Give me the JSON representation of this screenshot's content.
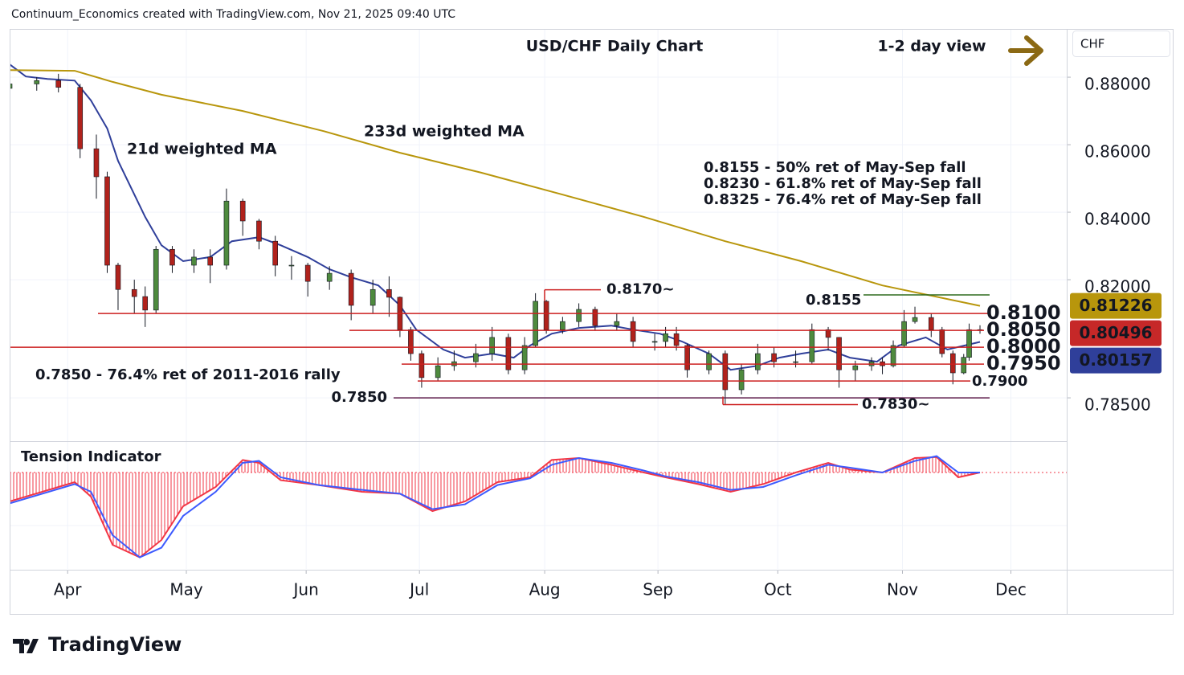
{
  "chart_data": {
    "type": "candlestick",
    "header": "Continuum_Economics created with TradingView.com, Nov 21, 2025 09:40 UTC",
    "title": "USD/CHF Daily Chart",
    "view": "1-2 day view",
    "currency": "CHF",
    "brand": "TradingView",
    "up_color": "#4e8a3e",
    "down_color": "#b0221c",
    "x": [
      0,
      5,
      9,
      13,
      16,
      18,
      20,
      23,
      25,
      27,
      30,
      34,
      37,
      40,
      43,
      46,
      49,
      52,
      55,
      59,
      63,
      67,
      70,
      72,
      74,
      76,
      79,
      82,
      86,
      89,
      92,
      95,
      97,
      99,
      102,
      105,
      108,
      112,
      115,
      119,
      121,
      123,
      125,
      129,
      132,
      135,
      138,
      141,
      145,
      148,
      151,
      153,
      156,
      159,
      161,
      163,
      165,
      167,
      170,
      172,
      174,
      176,
      177,
      179
    ],
    "open": [
      0.8767,
      0.878,
      0.879,
      0.877,
      0.8588,
      0.8505,
      0.8243,
      0.8171,
      0.815,
      0.811,
      0.829,
      0.8243,
      0.8267,
      0.8243,
      0.8433,
      0.8374,
      0.8314,
      0.8243,
      0.8243,
      0.8195,
      0.8219,
      0.8124,
      0.8171,
      0.8148,
      0.8052,
      0.7981,
      0.791,
      0.7945,
      0.7957,
      0.7981,
      0.8029,
      0.7933,
      0.8005,
      0.8136,
      0.8052,
      0.8076,
      0.8112,
      0.8064,
      0.8076,
      0.8017,
      0.8017,
      0.804,
      0.8005,
      0.7933,
      0.7981,
      0.7874,
      0.7933,
      0.7981,
      0.7957,
      0.7957,
      0.8052,
      0.8029,
      0.7933,
      0.7945,
      0.7957,
      0.7945,
      0.8005,
      0.8076,
      0.8088,
      0.8052,
      0.7981,
      0.7924,
      0.797,
      0.8052
    ],
    "high": [
      0.879,
      0.88,
      0.881,
      0.878,
      0.863,
      0.852,
      0.825,
      0.82,
      0.818,
      0.83,
      0.83,
      0.829,
      0.829,
      0.847,
      0.844,
      0.838,
      0.833,
      0.827,
      0.825,
      0.824,
      0.823,
      0.82,
      0.821,
      0.815,
      0.806,
      0.799,
      0.797,
      0.799,
      0.801,
      0.806,
      0.804,
      0.803,
      0.816,
      0.814,
      0.809,
      0.813,
      0.812,
      0.81,
      0.809,
      0.804,
      0.806,
      0.806,
      0.801,
      0.799,
      0.799,
      0.795,
      0.801,
      0.8,
      0.799,
      0.807,
      0.806,
      0.803,
      0.796,
      0.797,
      0.797,
      0.802,
      0.811,
      0.812,
      0.81,
      0.806,
      0.799,
      0.798,
      0.807,
      0.8065
    ],
    "low": [
      0.874,
      0.876,
      0.8755,
      0.856,
      0.844,
      0.822,
      0.811,
      0.81,
      0.806,
      0.81,
      0.822,
      0.822,
      0.819,
      0.823,
      0.833,
      0.829,
      0.821,
      0.82,
      0.815,
      0.817,
      0.808,
      0.81,
      0.809,
      0.803,
      0.796,
      0.788,
      0.79,
      0.793,
      0.794,
      0.796,
      0.792,
      0.792,
      0.8,
      0.804,
      0.804,
      0.806,
      0.805,
      0.805,
      0.8,
      0.799,
      0.8,
      0.799,
      0.791,
      0.792,
      0.783,
      0.786,
      0.792,
      0.794,
      0.794,
      0.795,
      0.799,
      0.788,
      0.79,
      0.793,
      0.792,
      0.794,
      0.8,
      0.807,
      0.803,
      0.797,
      0.789,
      0.792,
      0.796,
      0.804
    ],
    "close": [
      0.878,
      0.879,
      0.877,
      0.8588,
      0.8505,
      0.8243,
      0.8171,
      0.815,
      0.811,
      0.829,
      0.8243,
      0.8267,
      0.8243,
      0.8433,
      0.8374,
      0.8314,
      0.8243,
      0.8243,
      0.8195,
      0.8219,
      0.8124,
      0.8171,
      0.8148,
      0.8052,
      0.7981,
      0.791,
      0.7945,
      0.7957,
      0.7981,
      0.8029,
      0.7933,
      0.8005,
      0.8136,
      0.8052,
      0.8076,
      0.8112,
      0.8064,
      0.8076,
      0.8017,
      0.8017,
      0.804,
      0.8005,
      0.7933,
      0.7981,
      0.7874,
      0.7933,
      0.7981,
      0.7957,
      0.7957,
      0.8052,
      0.8029,
      0.7933,
      0.7945,
      0.7957,
      0.7945,
      0.8005,
      0.8076,
      0.8088,
      0.8052,
      0.7981,
      0.7924,
      0.797,
      0.8052,
      0.80496
    ],
    "xlim": [
      0,
      195
    ],
    "xticks": [
      {
        "value": 10.7,
        "label": "Apr"
      },
      {
        "value": 32.6,
        "label": "May"
      },
      {
        "value": 54.7,
        "label": "Jun"
      },
      {
        "value": 75.6,
        "label": "Jul"
      },
      {
        "value": 98.7,
        "label": "Aug"
      },
      {
        "value": 119.6,
        "label": "Sep"
      },
      {
        "value": 141.7,
        "label": "Oct"
      },
      {
        "value": 164.7,
        "label": "Nov"
      },
      {
        "value": 184.7,
        "label": "Dec"
      }
    ],
    "ylim": [
      0.7724,
      0.8943
    ],
    "yticks": [
      {
        "value": 0.785,
        "label": "0.78500"
      },
      {
        "value": 0.82,
        "label": "0.82000"
      },
      {
        "value": 0.84,
        "label": "0.84000"
      },
      {
        "value": 0.86,
        "label": "0.86000"
      },
      {
        "value": 0.88,
        "label": "0.88000"
      }
    ],
    "grid": true,
    "moving_averages": [
      {
        "name": "21d weighted MA",
        "color": "#2f3f9a",
        "x": [
          0,
          3,
          7,
          12,
          15,
          18,
          20,
          25,
          28,
          32,
          37,
          41,
          46,
          50,
          55,
          59,
          63,
          68,
          72,
          75,
          80,
          84,
          89,
          93,
          96,
          100,
          105,
          111,
          115,
          120,
          124,
          129,
          133,
          138,
          142,
          146,
          151,
          155,
          160,
          164,
          169,
          173,
          179
        ],
        "values": [
          0.8838,
          0.8802,
          0.8795,
          0.879,
          0.8731,
          0.8648,
          0.8552,
          0.8386,
          0.8302,
          0.8255,
          0.8267,
          0.8314,
          0.8326,
          0.8302,
          0.8267,
          0.8231,
          0.8207,
          0.8183,
          0.8124,
          0.8052,
          0.7993,
          0.7969,
          0.7981,
          0.7969,
          0.8005,
          0.804,
          0.8057,
          0.8064,
          0.8052,
          0.804,
          0.8017,
          0.7981,
          0.7933,
          0.7945,
          0.7969,
          0.7981,
          0.7993,
          0.7969,
          0.7957,
          0.8005,
          0.8029,
          0.7993,
          0.80157
        ]
      },
      {
        "name": "233d weighted MA",
        "color": "#b8960c",
        "x": [
          0,
          12,
          19,
          28,
          43,
          58,
          72,
          87,
          102,
          117,
          132,
          146,
          161,
          179
        ],
        "values": [
          0.8821,
          0.8819,
          0.8786,
          0.8748,
          0.87,
          0.864,
          0.8576,
          0.8517,
          0.8452,
          0.8386,
          0.8314,
          0.8255,
          0.8183,
          0.81226
        ]
      }
    ],
    "price_tags": [
      {
        "value": 0.81226,
        "label": "0.81226",
        "color": "#b8960c"
      },
      {
        "value": 0.80496,
        "label": "0.80496",
        "color": "#c62828"
      },
      {
        "value": 0.80157,
        "label": "0.80157",
        "color": "#2f3f9a"
      }
    ],
    "levels": [
      {
        "value": 0.81,
        "label": "0.8100",
        "color": "#cc1f1f"
      },
      {
        "value": 0.805,
        "label": "0.8050",
        "color": "#cc1f1f"
      },
      {
        "value": 0.8,
        "label": "0.8000",
        "color": "#cc1f1f"
      },
      {
        "value": 0.795,
        "label": "0.7950",
        "color": "#cc1f1f"
      },
      {
        "value": 0.79,
        "label": "0.7900",
        "color": "#cc1f1f"
      },
      {
        "value": 0.785,
        "label": "0.7850",
        "color": "#5c1a4a"
      },
      {
        "value": 0.8155,
        "label": "0.8155",
        "color": "#2e6b1f"
      },
      {
        "value": 0.817,
        "label": "0.8170~",
        "color": "#cc1f1f"
      },
      {
        "value": 0.783,
        "label": "0.7830~",
        "color": "#cc1f1f"
      }
    ],
    "notes": [
      "0.8155 - 50% ret of May-Sep fall",
      "0.8230 - 61.8% ret of May-Sep fall",
      "0.8325 - 76.4% ret of May-Sep fall"
    ],
    "notes_color": "#2e6b1f",
    "left_note": "0.7850 - 76.4% ret of 2011-2016 rally",
    "left_note_color": "#6a1b4d",
    "indicator": {
      "name": "Tension Indicator",
      "ylim": [
        -100,
        30
      ],
      "x": [
        0,
        12,
        15,
        19,
        24,
        28,
        32,
        38,
        43,
        46,
        50,
        57,
        65,
        72,
        78,
        84,
        90,
        96,
        100,
        105,
        111,
        117,
        121,
        127,
        133,
        139,
        145,
        151,
        155,
        161,
        167,
        171,
        175,
        179
      ],
      "series": [
        {
          "color": "#f23645",
          "values": [
            -30,
            -10,
            -25,
            -75,
            -88,
            -70,
            -35,
            -15,
            13,
            10,
            -8,
            -13,
            -20,
            -22,
            -40,
            -30,
            -10,
            -5,
            13,
            15,
            8,
            0,
            -5,
            -12,
            -20,
            -12,
            0,
            10,
            3,
            0,
            15,
            16,
            -5,
            0
          ]
        },
        {
          "color": "#3d5afe",
          "values": [
            -32,
            -12,
            -20,
            -65,
            -88,
            -78,
            -45,
            -20,
            10,
            12,
            -5,
            -13,
            -18,
            -22,
            -38,
            -33,
            -13,
            -6,
            8,
            15,
            10,
            2,
            -4,
            -10,
            -18,
            -15,
            -3,
            8,
            5,
            0,
            12,
            17,
            0,
            0
          ]
        }
      ]
    }
  }
}
